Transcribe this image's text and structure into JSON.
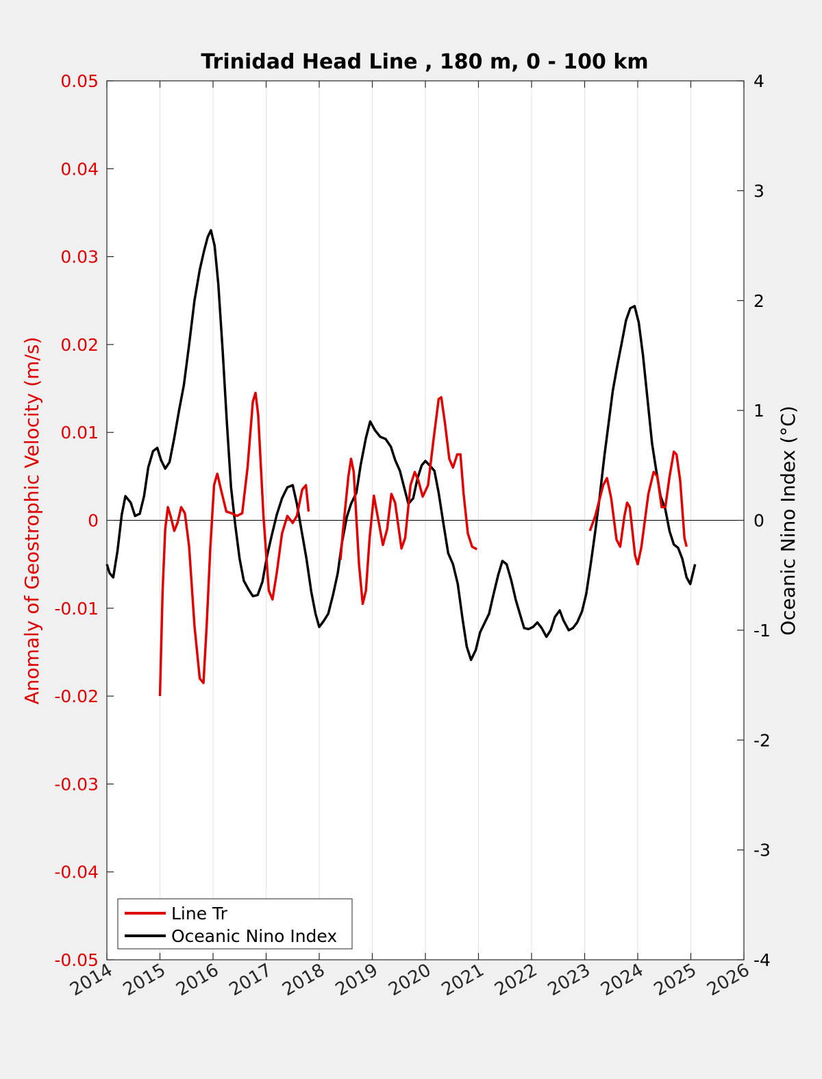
{
  "chart_data": {
    "type": "line",
    "title": "Trinidad Head Line , 180 m, 0 - 100 km",
    "xlabel": "",
    "ylabel_left": "Anomaly of Geostrophic Velocity (m/s)",
    "ylabel_right": "Oceanic Nino Index (°C)",
    "xlim": [
      2014,
      2026
    ],
    "ylim_left": [
      -0.05,
      0.05
    ],
    "ylim_right": [
      -4,
      4
    ],
    "x_ticks": [
      "2014",
      "2015",
      "2016",
      "2017",
      "2018",
      "2019",
      "2020",
      "2021",
      "2022",
      "2023",
      "2024",
      "2025",
      "2026"
    ],
    "y_ticks_left": [
      "0.05",
      "0.04",
      "0.03",
      "0.02",
      "0.01",
      "0",
      "-0.01",
      "-0.02",
      "-0.03",
      "-0.04",
      "-0.05"
    ],
    "y_ticks_right": [
      "4",
      "3",
      "2",
      "1",
      "0",
      "-1",
      "-2",
      "-3",
      "-4"
    ],
    "grid": "vertical",
    "legend_position": "bottom-left",
    "colors": {
      "left_axis": "#e00000",
      "series_line_tr": "#e00000",
      "series_oni": "#000000",
      "axes": "#262626"
    },
    "series": [
      {
        "name": "Line Tr",
        "axis": "left",
        "segments": [
          [
            [
              2015.0,
              -0.02
            ],
            [
              2015.05,
              -0.008
            ],
            [
              2015.1,
              -0.001
            ],
            [
              2015.15,
              0.0015
            ],
            [
              2015.2,
              0.0005
            ],
            [
              2015.27,
              -0.0012
            ],
            [
              2015.33,
              -0.0003
            ],
            [
              2015.4,
              0.0015
            ],
            [
              2015.47,
              0.0008
            ],
            [
              2015.55,
              -0.003
            ],
            [
              2015.65,
              -0.012
            ],
            [
              2015.75,
              -0.018
            ],
            [
              2015.82,
              -0.0185
            ],
            [
              2015.88,
              -0.012
            ],
            [
              2015.95,
              -0.003
            ],
            [
              2016.02,
              0.004
            ],
            [
              2016.08,
              0.0053
            ],
            [
              2016.15,
              0.0035
            ],
            [
              2016.25,
              0.001
            ],
            [
              2016.35,
              0.0008
            ],
            [
              2016.45,
              0.0005
            ],
            [
              2016.55,
              0.0008
            ],
            [
              2016.65,
              0.006
            ],
            [
              2016.75,
              0.0135
            ],
            [
              2016.8,
              0.0145
            ],
            [
              2016.85,
              0.012
            ],
            [
              2016.95,
              0.0005
            ],
            [
              2017.05,
              -0.008
            ],
            [
              2017.12,
              -0.009
            ],
            [
              2017.2,
              -0.006
            ],
            [
              2017.3,
              -0.0015
            ],
            [
              2017.4,
              0.0005
            ],
            [
              2017.5,
              -0.0003
            ],
            [
              2017.58,
              0.0005
            ],
            [
              2017.68,
              0.0035
            ],
            [
              2017.75,
              0.004
            ],
            [
              2017.8,
              0.001
            ]
          ],
          [
            [
              2018.4,
              -0.0045
            ],
            [
              2018.45,
              -0.001
            ],
            [
              2018.55,
              0.005
            ],
            [
              2018.6,
              0.007
            ],
            [
              2018.65,
              0.0055
            ],
            [
              2018.75,
              -0.005
            ],
            [
              2018.82,
              -0.0095
            ],
            [
              2018.88,
              -0.008
            ],
            [
              2018.95,
              -0.002
            ],
            [
              2019.03,
              0.0028
            ],
            [
              2019.1,
              0.0005
            ],
            [
              2019.2,
              -0.0028
            ],
            [
              2019.28,
              -0.001
            ],
            [
              2019.36,
              0.003
            ],
            [
              2019.43,
              0.002
            ],
            [
              2019.55,
              -0.0032
            ],
            [
              2019.62,
              -0.002
            ],
            [
              2019.72,
              0.004
            ],
            [
              2019.8,
              0.0055
            ],
            [
              2019.87,
              0.0045
            ],
            [
              2019.95,
              0.0027
            ],
            [
              2020.05,
              0.004
            ],
            [
              2020.15,
              0.009
            ],
            [
              2020.25,
              0.0138
            ],
            [
              2020.3,
              0.014
            ],
            [
              2020.37,
              0.011
            ],
            [
              2020.45,
              0.007
            ],
            [
              2020.52,
              0.006
            ],
            [
              2020.6,
              0.0075
            ],
            [
              2020.66,
              0.0075
            ],
            [
              2020.72,
              0.003
            ],
            [
              2020.8,
              -0.0015
            ],
            [
              2020.88,
              -0.003
            ],
            [
              2020.97,
              -0.0033
            ]
          ],
          [
            [
              2023.1,
              -0.0012
            ],
            [
              2023.2,
              0.0005
            ],
            [
              2023.35,
              0.004
            ],
            [
              2023.42,
              0.0048
            ],
            [
              2023.5,
              0.0025
            ],
            [
              2023.6,
              -0.0022
            ],
            [
              2023.67,
              -0.003
            ],
            [
              2023.75,
              0.0005
            ],
            [
              2023.8,
              0.002
            ],
            [
              2023.85,
              0.0015
            ],
            [
              2023.95,
              -0.004
            ],
            [
              2024.0,
              -0.005
            ],
            [
              2024.07,
              -0.003
            ],
            [
              2024.2,
              0.003
            ],
            [
              2024.3,
              0.0055
            ],
            [
              2024.37,
              0.005
            ],
            [
              2024.45,
              0.0015
            ],
            [
              2024.52,
              0.0015
            ],
            [
              2024.6,
              0.005
            ],
            [
              2024.68,
              0.0078
            ],
            [
              2024.73,
              0.0075
            ],
            [
              2024.8,
              0.0045
            ],
            [
              2024.88,
              -0.002
            ],
            [
              2024.92,
              -0.003
            ]
          ]
        ]
      },
      {
        "name": "Oceanic Nino Index",
        "axis": "right",
        "points": [
          [
            2014.0,
            -0.4
          ],
          [
            2014.05,
            -0.48
          ],
          [
            2014.12,
            -0.52
          ],
          [
            2014.2,
            -0.28
          ],
          [
            2014.28,
            0.05
          ],
          [
            2014.35,
            0.22
          ],
          [
            2014.45,
            0.16
          ],
          [
            2014.53,
            0.04
          ],
          [
            2014.62,
            0.06
          ],
          [
            2014.7,
            0.22
          ],
          [
            2014.78,
            0.48
          ],
          [
            2014.87,
            0.63
          ],
          [
            2014.95,
            0.66
          ],
          [
            2015.02,
            0.55
          ],
          [
            2015.1,
            0.47
          ],
          [
            2015.18,
            0.53
          ],
          [
            2015.27,
            0.75
          ],
          [
            2015.36,
            1.0
          ],
          [
            2015.45,
            1.23
          ],
          [
            2015.55,
            1.6
          ],
          [
            2015.65,
            2.0
          ],
          [
            2015.75,
            2.28
          ],
          [
            2015.83,
            2.45
          ],
          [
            2015.9,
            2.58
          ],
          [
            2015.96,
            2.64
          ],
          [
            2016.03,
            2.5
          ],
          [
            2016.1,
            2.15
          ],
          [
            2016.18,
            1.55
          ],
          [
            2016.26,
            0.9
          ],
          [
            2016.34,
            0.3
          ],
          [
            2016.42,
            -0.05
          ],
          [
            2016.5,
            -0.35
          ],
          [
            2016.58,
            -0.55
          ],
          [
            2016.67,
            -0.63
          ],
          [
            2016.75,
            -0.69
          ],
          [
            2016.84,
            -0.68
          ],
          [
            2016.93,
            -0.56
          ],
          [
            2017.02,
            -0.32
          ],
          [
            2017.1,
            -0.15
          ],
          [
            2017.2,
            0.05
          ],
          [
            2017.3,
            0.2
          ],
          [
            2017.4,
            0.3
          ],
          [
            2017.5,
            0.32
          ],
          [
            2017.58,
            0.15
          ],
          [
            2017.67,
            -0.1
          ],
          [
            2017.76,
            -0.35
          ],
          [
            2017.85,
            -0.65
          ],
          [
            2017.93,
            -0.85
          ],
          [
            2018.0,
            -0.97
          ],
          [
            2018.08,
            -0.92
          ],
          [
            2018.17,
            -0.85
          ],
          [
            2018.26,
            -0.68
          ],
          [
            2018.35,
            -0.48
          ],
          [
            2018.43,
            -0.2
          ],
          [
            2018.52,
            0.03
          ],
          [
            2018.6,
            0.15
          ],
          [
            2018.7,
            0.25
          ],
          [
            2018.78,
            0.5
          ],
          [
            2018.88,
            0.75
          ],
          [
            2018.96,
            0.9
          ],
          [
            2019.05,
            0.82
          ],
          [
            2019.15,
            0.76
          ],
          [
            2019.25,
            0.74
          ],
          [
            2019.35,
            0.67
          ],
          [
            2019.43,
            0.55
          ],
          [
            2019.52,
            0.45
          ],
          [
            2019.6,
            0.3
          ],
          [
            2019.68,
            0.15
          ],
          [
            2019.77,
            0.2
          ],
          [
            2019.85,
            0.38
          ],
          [
            2019.93,
            0.5
          ],
          [
            2020.0,
            0.54
          ],
          [
            2020.08,
            0.5
          ],
          [
            2020.17,
            0.45
          ],
          [
            2020.25,
            0.25
          ],
          [
            2020.33,
            0.0
          ],
          [
            2020.43,
            -0.3
          ],
          [
            2020.52,
            -0.4
          ],
          [
            2020.61,
            -0.58
          ],
          [
            2020.7,
            -0.9
          ],
          [
            2020.78,
            -1.15
          ],
          [
            2020.86,
            -1.27
          ],
          [
            2020.95,
            -1.18
          ],
          [
            2021.03,
            -1.02
          ],
          [
            2021.12,
            -0.93
          ],
          [
            2021.2,
            -0.85
          ],
          [
            2021.28,
            -0.68
          ],
          [
            2021.37,
            -0.5
          ],
          [
            2021.45,
            -0.37
          ],
          [
            2021.53,
            -0.4
          ],
          [
            2021.62,
            -0.55
          ],
          [
            2021.7,
            -0.72
          ],
          [
            2021.78,
            -0.85
          ],
          [
            2021.86,
            -0.98
          ],
          [
            2021.94,
            -0.99
          ],
          [
            2022.03,
            -0.97
          ],
          [
            2022.11,
            -0.93
          ],
          [
            2022.19,
            -0.98
          ],
          [
            2022.28,
            -1.06
          ],
          [
            2022.36,
            -1.0
          ],
          [
            2022.44,
            -0.88
          ],
          [
            2022.53,
            -0.82
          ],
          [
            2022.6,
            -0.91
          ],
          [
            2022.7,
            -1.0
          ],
          [
            2022.78,
            -0.98
          ],
          [
            2022.86,
            -0.93
          ],
          [
            2022.95,
            -0.83
          ],
          [
            2023.03,
            -0.67
          ],
          [
            2023.12,
            -0.38
          ],
          [
            2023.2,
            -0.1
          ],
          [
            2023.28,
            0.2
          ],
          [
            2023.37,
            0.58
          ],
          [
            2023.45,
            0.88
          ],
          [
            2023.53,
            1.18
          ],
          [
            2023.62,
            1.42
          ],
          [
            2023.7,
            1.62
          ],
          [
            2023.78,
            1.82
          ],
          [
            2023.86,
            1.93
          ],
          [
            2023.94,
            1.95
          ],
          [
            2024.02,
            1.8
          ],
          [
            2024.1,
            1.5
          ],
          [
            2024.18,
            1.12
          ],
          [
            2024.27,
            0.7
          ],
          [
            2024.35,
            0.45
          ],
          [
            2024.43,
            0.22
          ],
          [
            2024.52,
            0.1
          ],
          [
            2024.6,
            -0.1
          ],
          [
            2024.68,
            -0.22
          ],
          [
            2024.76,
            -0.25
          ],
          [
            2024.84,
            -0.35
          ],
          [
            2024.92,
            -0.52
          ],
          [
            2024.99,
            -0.58
          ],
          [
            2025.08,
            -0.4
          ]
        ]
      }
    ]
  }
}
